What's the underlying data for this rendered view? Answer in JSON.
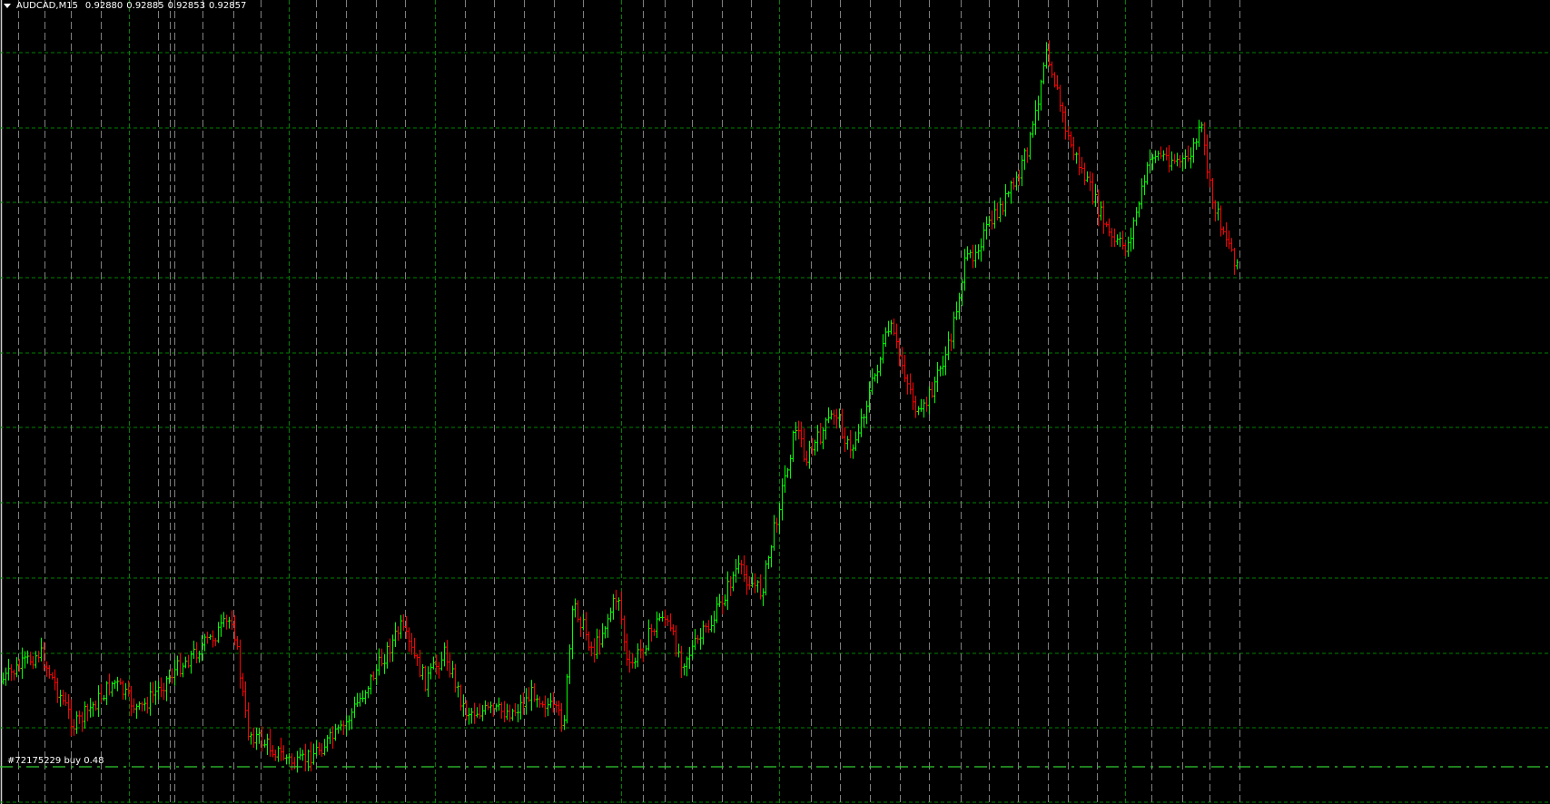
{
  "chart_header": {
    "symbol_timeframe": "AUDCAD,M15",
    "open": "0.92880",
    "high": "0.92885",
    "low": "0.92853",
    "close": "0.92857"
  },
  "order_line": {
    "label": "#72175229 buy 0.48",
    "color": "#32cd32"
  },
  "colors": {
    "background": "#000000",
    "bull_bar": "#00ff00",
    "bear_bar": "#ff0000",
    "grid_horizontal": "#008000",
    "grid_vertical_gray": "#808080",
    "grid_vertical_day": "#008000"
  },
  "icons": {
    "menu": "triangle-down-icon"
  }
}
